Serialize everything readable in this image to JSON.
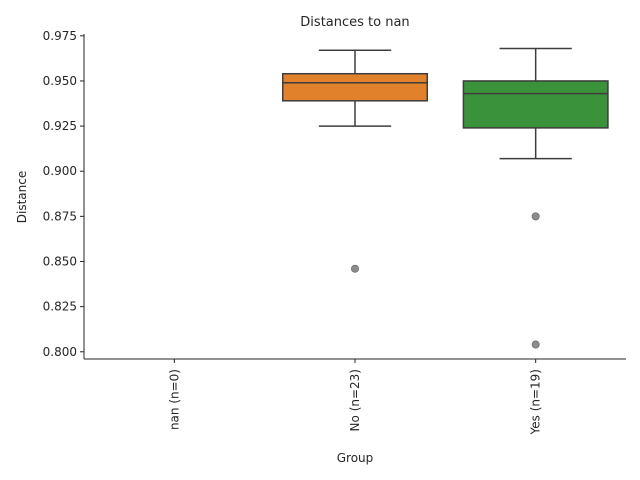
{
  "chart_data": {
    "type": "box",
    "title": "Distances to nan",
    "xlabel": "Group",
    "ylabel": "Distance",
    "ylim": [
      0.796,
      0.976
    ],
    "yticks": [
      0.8,
      0.825,
      0.85,
      0.875,
      0.9,
      0.925,
      0.95,
      0.975
    ],
    "ytick_labels": [
      "0.800",
      "0.825",
      "0.850",
      "0.875",
      "0.900",
      "0.925",
      "0.950",
      "0.975"
    ],
    "grid": false,
    "categories": [
      "nan (n=0)",
      "No (n=23)",
      "Yes (n=19)"
    ],
    "boxes": [
      {
        "category": "nan (n=0)",
        "color": null
      },
      {
        "category": "No (n=23)",
        "color": "#e1812c",
        "whisker_low": 0.925,
        "q1": 0.939,
        "median": 0.949,
        "q3": 0.954,
        "whisker_high": 0.967,
        "outliers": [
          0.846
        ]
      },
      {
        "category": "Yes (n=19)",
        "color": "#3a923a",
        "whisker_low": 0.907,
        "q1": 0.924,
        "median": 0.943,
        "q3": 0.95,
        "whisker_high": 0.968,
        "outliers": [
          0.875,
          0.804
        ]
      }
    ],
    "colors": {
      "box_edge": "#3d3d3d",
      "outlier": "#8c8c8c",
      "axis": "#262626"
    }
  }
}
